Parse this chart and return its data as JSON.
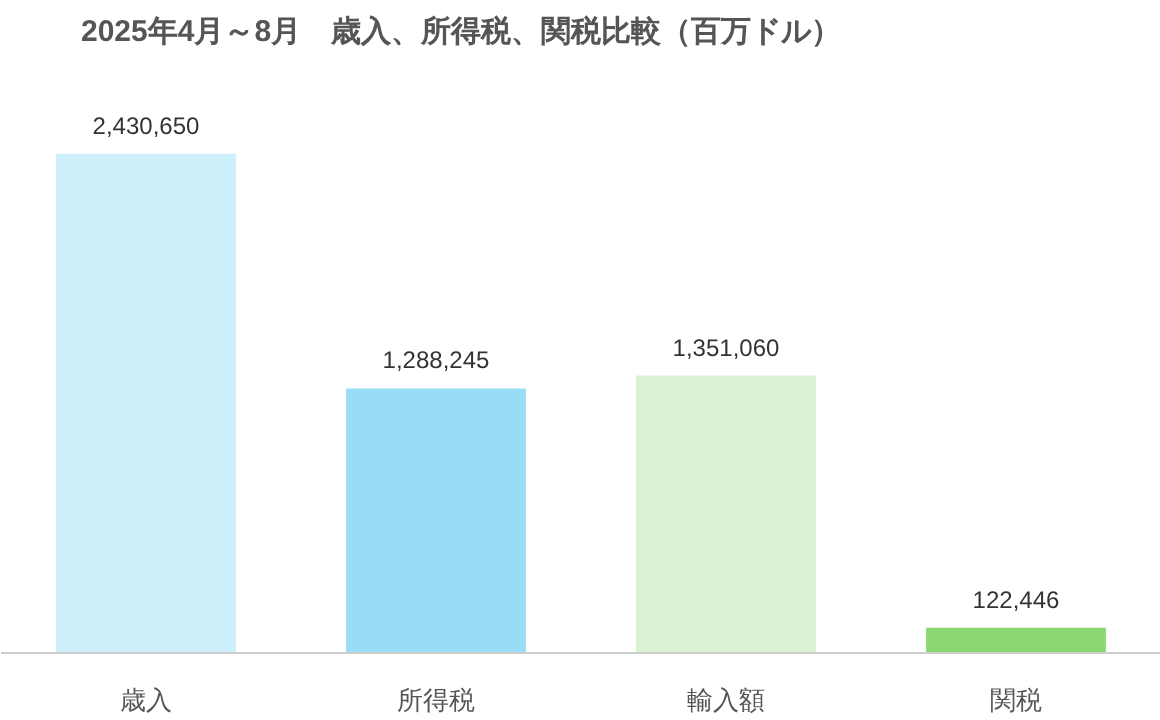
{
  "chart_data": {
    "type": "bar",
    "title": "2025年4月～8月　歳入、所得税、関税比較（百万ドル）",
    "categories": [
      "歳入",
      "所得税",
      "輸入額",
      "関税"
    ],
    "values": [
      2430650,
      1288245,
      1351060,
      122446
    ],
    "colors": [
      "#cdeefb",
      "#99dcf6",
      "#daf3d3",
      "#8cd870"
    ],
    "value_labels": [
      "2,430,650",
      "1,288,245",
      "1,351,060",
      "122,446"
    ]
  }
}
